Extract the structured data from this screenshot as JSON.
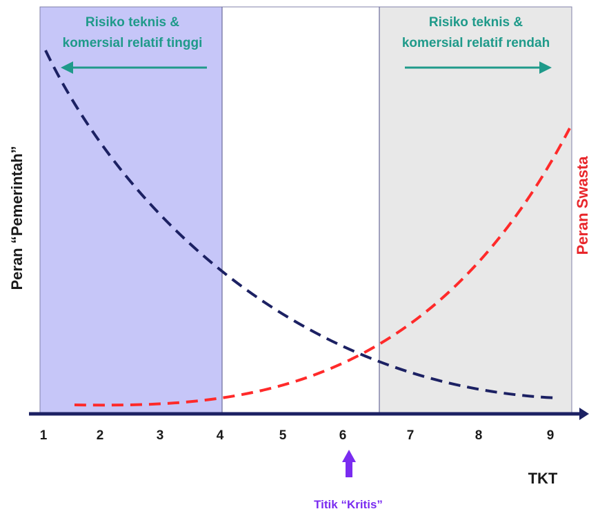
{
  "zones": {
    "left": {
      "line1": "Risiko teknis &",
      "line2": "komersial relatif tinggi",
      "fill": "#c6c6f8",
      "text_color": "#1f9a8a"
    },
    "right": {
      "line1": "Risiko teknis &",
      "line2": "komersial relatif rendah",
      "fill": "#e8e8e8",
      "text_color": "#1f9a8a"
    }
  },
  "y_label_left": "Peran “Pemerintah”",
  "y_label_right": "Peran Swasta",
  "x_axis_label": "TKT",
  "critical_point": {
    "label": "Titik “Kritis”",
    "color": "#7a2cf0"
  },
  "colors": {
    "government_curve": "#1c2163",
    "private_curve": "#ff2a2a",
    "axis": "#1c2163",
    "arrow": "#1f9a8a",
    "right_label": "#e8262b"
  },
  "chart_data": {
    "type": "line",
    "x_ticks": [
      "1",
      "2",
      "3",
      "4",
      "5",
      "6",
      "7",
      "8",
      "9"
    ],
    "series": [
      {
        "name": "Peran “Pemerintah”",
        "style": "dashed",
        "trend": "decreasing"
      },
      {
        "name": "Peran Swasta",
        "style": "dashed",
        "trend": "increasing"
      }
    ],
    "zones": [
      {
        "from": 1,
        "to": 4,
        "label": "Risiko teknis & komersial relatif tinggi"
      },
      {
        "from": 6.5,
        "to": 9.3,
        "label": "Risiko teknis & komersial relatif rendah"
      }
    ],
    "critical_x": 6
  }
}
